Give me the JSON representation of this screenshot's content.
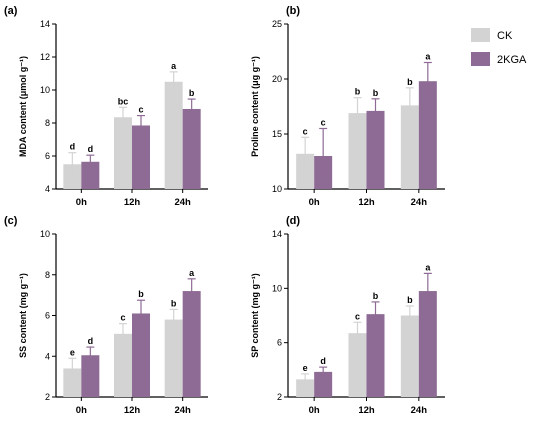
{
  "colors": {
    "CK": "#d3d3d3",
    "2KGA": "#8e6b95"
  },
  "legend": [
    {
      "name": "CK",
      "color": "#d3d3d3"
    },
    {
      "name": "2KGA",
      "color": "#8e6b95"
    }
  ],
  "chart_data": [
    {
      "type": "bar",
      "panel": "(a)",
      "ylabel": "MDA content (μmol g⁻¹)",
      "categories": [
        "0h",
        "12h",
        "24h"
      ],
      "ylim": [
        4,
        14
      ],
      "yticks": [
        4,
        6,
        8,
        10,
        12,
        14
      ],
      "series": [
        {
          "name": "CK",
          "values": [
            5.5,
            8.35,
            10.5
          ],
          "errors": [
            0.7,
            0.6,
            0.6
          ],
          "labels": [
            "d",
            "bc",
            "a"
          ]
        },
        {
          "name": "2KGA",
          "values": [
            5.65,
            7.85,
            8.85
          ],
          "errors": [
            0.4,
            0.6,
            0.6
          ],
          "labels": [
            "d",
            "c",
            "b"
          ]
        }
      ]
    },
    {
      "type": "bar",
      "panel": "(b)",
      "ylabel": "Proline content (μg g⁻¹)",
      "categories": [
        "0h",
        "12h",
        "24h"
      ],
      "ylim": [
        10,
        25
      ],
      "yticks": [
        10,
        15,
        20,
        25
      ],
      "series": [
        {
          "name": "CK",
          "values": [
            13.2,
            16.9,
            17.6
          ],
          "errors": [
            1.5,
            1.4,
            1.6
          ],
          "labels": [
            "c",
            "b",
            "b"
          ]
        },
        {
          "name": "2KGA",
          "values": [
            13.0,
            17.1,
            19.8
          ],
          "errors": [
            2.5,
            1.1,
            1.7
          ],
          "labels": [
            "c",
            "b",
            "a"
          ]
        }
      ]
    },
    {
      "type": "bar",
      "panel": "(c)",
      "ylabel": "SS content (mg g⁻¹)",
      "categories": [
        "0h",
        "12h",
        "24h"
      ],
      "ylim": [
        2,
        10
      ],
      "yticks": [
        2,
        4,
        6,
        8,
        10
      ],
      "series": [
        {
          "name": "CK",
          "values": [
            3.4,
            5.1,
            5.8
          ],
          "errors": [
            0.5,
            0.5,
            0.5
          ],
          "labels": [
            "e",
            "c",
            "b"
          ]
        },
        {
          "name": "2KGA",
          "values": [
            4.05,
            6.1,
            7.2
          ],
          "errors": [
            0.4,
            0.65,
            0.6
          ],
          "labels": [
            "d",
            "b",
            "a"
          ]
        }
      ]
    },
    {
      "type": "bar",
      "panel": "(d)",
      "ylabel": "SP content (mg g⁻¹)",
      "categories": [
        "0h",
        "12h",
        "24h"
      ],
      "ylim": [
        2,
        14
      ],
      "yticks": [
        2,
        6,
        10,
        14
      ],
      "series": [
        {
          "name": "CK",
          "values": [
            3.3,
            6.7,
            8.0
          ],
          "errors": [
            0.4,
            0.8,
            0.7
          ],
          "labels": [
            "e",
            "c",
            "b"
          ]
        },
        {
          "name": "2KGA",
          "values": [
            3.85,
            8.1,
            9.8
          ],
          "errors": [
            0.35,
            0.9,
            1.3
          ],
          "labels": [
            "d",
            "b",
            "a"
          ]
        }
      ]
    }
  ]
}
